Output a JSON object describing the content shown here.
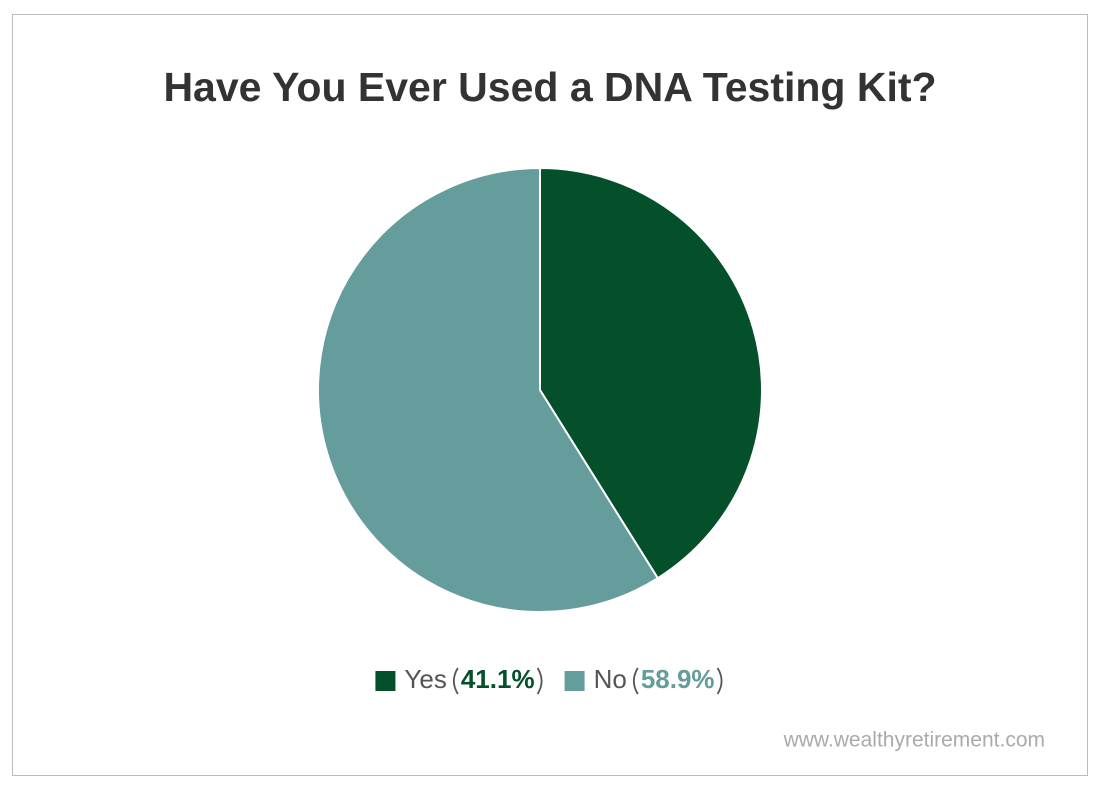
{
  "chart_data": {
    "type": "pie",
    "title": "Have You Ever Used a DNA Testing Kit?",
    "categories": [
      "Yes",
      "No"
    ],
    "values": [
      41.1,
      58.9
    ],
    "value_labels": [
      "41.1%",
      "58.9%"
    ],
    "colors": [
      "#03502a",
      "#659c9c"
    ],
    "legend": "bottom",
    "source": "www.wealthyretirement.com"
  }
}
